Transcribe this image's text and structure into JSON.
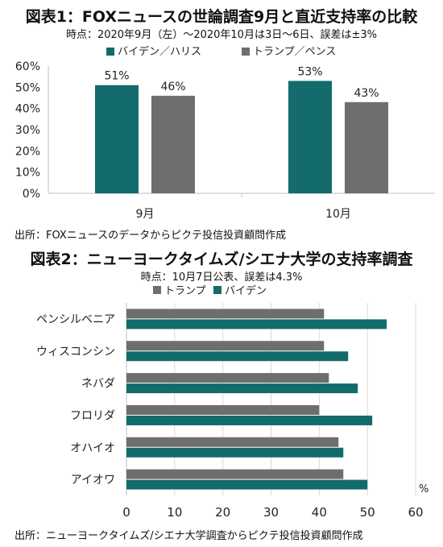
{
  "colors": {
    "biden": "#136b6b",
    "trump": "#6e6e6e",
    "axis": "#bfbfbf",
    "grid": "#d9d9d9"
  },
  "chart_data": [
    {
      "type": "bar",
      "title": "図表1：FOXニュースの世論調査9月と直近支持率の比較",
      "subtitle": "時点：2020年9月（左）～2020年10月は3日～6日、誤差は±3%",
      "categories": [
        "9月",
        "10月"
      ],
      "series": [
        {
          "name": "バイデン／ハリス",
          "values": [
            51,
            53
          ],
          "labels": [
            "51%",
            "53%"
          ]
        },
        {
          "name": "トランプ／ペンス",
          "values": [
            46,
            43
          ],
          "labels": [
            "46%",
            "43%"
          ]
        }
      ],
      "yticks": [
        "0%",
        "10%",
        "20%",
        "30%",
        "40%",
        "50%",
        "60%"
      ],
      "ylim": [
        0,
        60
      ],
      "legend": "top",
      "source": "出所：FOXニュースのデータからピクテ投信投資顧問作成"
    },
    {
      "type": "bar",
      "orientation": "horizontal",
      "title": "図表2：ニューヨークタイムズ/シエナ大学の支持率調査",
      "subtitle": "時点：10月7日公表、誤差は4.3%",
      "categories": [
        "ペンシルベニア",
        "ウィスコンシン",
        "ネバダ",
        "フロリダ",
        "オハイオ",
        "アイオワ"
      ],
      "series": [
        {
          "name": "トランプ",
          "values": [
            41,
            41,
            42,
            40,
            44,
            45
          ]
        },
        {
          "name": "バイデン",
          "values": [
            54,
            46,
            48,
            51,
            45,
            50
          ]
        }
      ],
      "xticks": [
        "0",
        "10",
        "20",
        "30",
        "40",
        "50",
        "60"
      ],
      "xlim": [
        0,
        60
      ],
      "unit": "%",
      "legend": "top",
      "source": "出所：ニューヨークタイムズ/シエナ大学調査からピクテ投信投資顧問作成"
    }
  ]
}
